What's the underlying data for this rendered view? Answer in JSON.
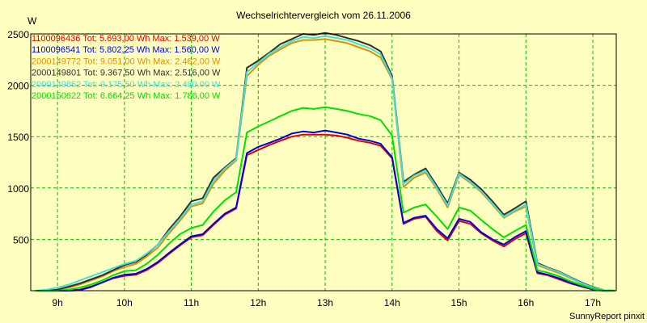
{
  "chart_data": {
    "type": "line",
    "title": "Wechselrichtervergleich vom 26.11.2006",
    "ylabel": "W",
    "xlabel": "",
    "credit": "SunnyReport pinxit",
    "background_color": "#ffffc0",
    "grid": true,
    "grid_color": "#00c000",
    "legend_position": "top-left",
    "xlim": [
      8.6,
      17.35
    ],
    "ylim": [
      0,
      2500
    ],
    "x_tick_values": [
      9,
      10,
      11,
      12,
      13,
      14,
      15,
      16,
      17
    ],
    "x_tick_labels": [
      "9h",
      "10h",
      "11h",
      "12h",
      "13h",
      "14h",
      "15h",
      "16h",
      "17h"
    ],
    "y_tick_values": [
      500,
      1000,
      1500,
      2000,
      2500
    ],
    "y_tick_labels": [
      "500",
      "1000",
      "1500",
      "2000",
      "2500"
    ],
    "x": [
      8.67,
      8.83,
      9.0,
      9.17,
      9.33,
      9.5,
      9.67,
      9.83,
      10.0,
      10.17,
      10.33,
      10.5,
      10.67,
      10.83,
      11.0,
      11.17,
      11.33,
      11.5,
      11.67,
      11.83,
      12.0,
      12.17,
      12.33,
      12.5,
      12.67,
      12.83,
      13.0,
      13.17,
      13.33,
      13.5,
      13.67,
      13.83,
      14.0,
      14.17,
      14.33,
      14.5,
      14.67,
      14.83,
      15.0,
      15.17,
      15.33,
      15.5,
      15.67,
      15.83,
      16.0,
      16.17,
      16.33,
      16.5,
      16.67,
      16.83,
      17.0,
      17.17,
      17.33
    ],
    "series": [
      {
        "name": "1100096436",
        "legend_text": "1100096436  Tot: 5.693,00 Wh Max: 1.539,00 W",
        "color": "#e00000",
        "values": [
          0,
          0,
          0,
          5,
          10,
          40,
          80,
          120,
          145,
          155,
          200,
          270,
          360,
          440,
          520,
          540,
          640,
          740,
          800,
          1320,
          1370,
          1420,
          1460,
          1500,
          1520,
          1520,
          1520,
          1510,
          1490,
          1460,
          1440,
          1410,
          1290,
          650,
          700,
          720,
          580,
          490,
          680,
          650,
          560,
          490,
          430,
          500,
          560,
          170,
          150,
          110,
          70,
          40,
          10,
          0,
          0
        ]
      },
      {
        "name": "1100096541",
        "legend_text": "1100096541  Tot: 5.802,25 Wh Max: 1.560,00 W",
        "color": "#0000e0",
        "values": [
          0,
          0,
          0,
          0,
          5,
          35,
          80,
          125,
          155,
          165,
          210,
          280,
          370,
          450,
          530,
          550,
          650,
          750,
          810,
          1340,
          1400,
          1440,
          1480,
          1530,
          1550,
          1540,
          1560,
          1540,
          1520,
          1480,
          1460,
          1430,
          1300,
          660,
          710,
          730,
          600,
          510,
          700,
          670,
          570,
          500,
          450,
          520,
          580,
          180,
          155,
          120,
          75,
          45,
          15,
          0,
          0
        ]
      },
      {
        "name": "2000149772",
        "legend_text": "2000149772  Tot: 9.051,00 Wh Max: 2.462,00 W",
        "color": "#e09000",
        "values": [
          0,
          0,
          10,
          30,
          60,
          100,
          140,
          190,
          230,
          260,
          330,
          420,
          560,
          680,
          820,
          850,
          1040,
          1170,
          1270,
          2090,
          2200,
          2290,
          2350,
          2410,
          2440,
          2440,
          2450,
          2430,
          2410,
          2370,
          2330,
          2270,
          2060,
          1010,
          1100,
          1150,
          990,
          810,
          1130,
          1050,
          960,
          840,
          710,
          770,
          820,
          250,
          210,
          170,
          120,
          70,
          30,
          5,
          0
        ]
      },
      {
        "name": "2000149801",
        "legend_text": "2000149801  Tot: 9.367,50 Wh Max: 2.516,00 W",
        "color": "#303030",
        "values": [
          0,
          0,
          10,
          40,
          70,
          110,
          150,
          200,
          250,
          280,
          350,
          450,
          600,
          720,
          870,
          900,
          1100,
          1200,
          1290,
          2170,
          2240,
          2320,
          2400,
          2450,
          2500,
          2490,
          2510,
          2490,
          2460,
          2430,
          2390,
          2330,
          2090,
          1060,
          1130,
          1190,
          1020,
          850,
          1150,
          1080,
          990,
          870,
          740,
          800,
          870,
          270,
          225,
          185,
          130,
          80,
          35,
          5,
          0
        ]
      },
      {
        "name": "2000149852",
        "legend_text": "2000149852  Tot: 9.175,50 Wh Max: 2.480,00 W",
        "color": "#40e0e0",
        "values": [
          0,
          10,
          30,
          60,
          100,
          140,
          180,
          220,
          260,
          290,
          360,
          450,
          580,
          700,
          840,
          870,
          1070,
          1190,
          1280,
          2130,
          2220,
          2310,
          2370,
          2430,
          2470,
          2460,
          2480,
          2460,
          2440,
          2400,
          2360,
          2300,
          2070,
          1040,
          1120,
          1170,
          1000,
          830,
          1140,
          1060,
          970,
          850,
          720,
          780,
          840,
          260,
          220,
          180,
          125,
          75,
          30,
          5,
          0
        ]
      },
      {
        "name": "2000150622",
        "legend_text": "2000150622  Tot: 6.664,25 Wh Max: 1.786,00 W",
        "color": "#00e000",
        "values": [
          0,
          0,
          0,
          10,
          30,
          60,
          100,
          150,
          190,
          200,
          260,
          350,
          460,
          550,
          610,
          640,
          770,
          880,
          960,
          1540,
          1600,
          1650,
          1700,
          1750,
          1780,
          1770,
          1786,
          1770,
          1750,
          1720,
          1700,
          1660,
          1510,
          760,
          810,
          840,
          720,
          600,
          810,
          780,
          690,
          600,
          520,
          580,
          640,
          200,
          175,
          140,
          90,
          55,
          20,
          0,
          0
        ]
      }
    ]
  }
}
